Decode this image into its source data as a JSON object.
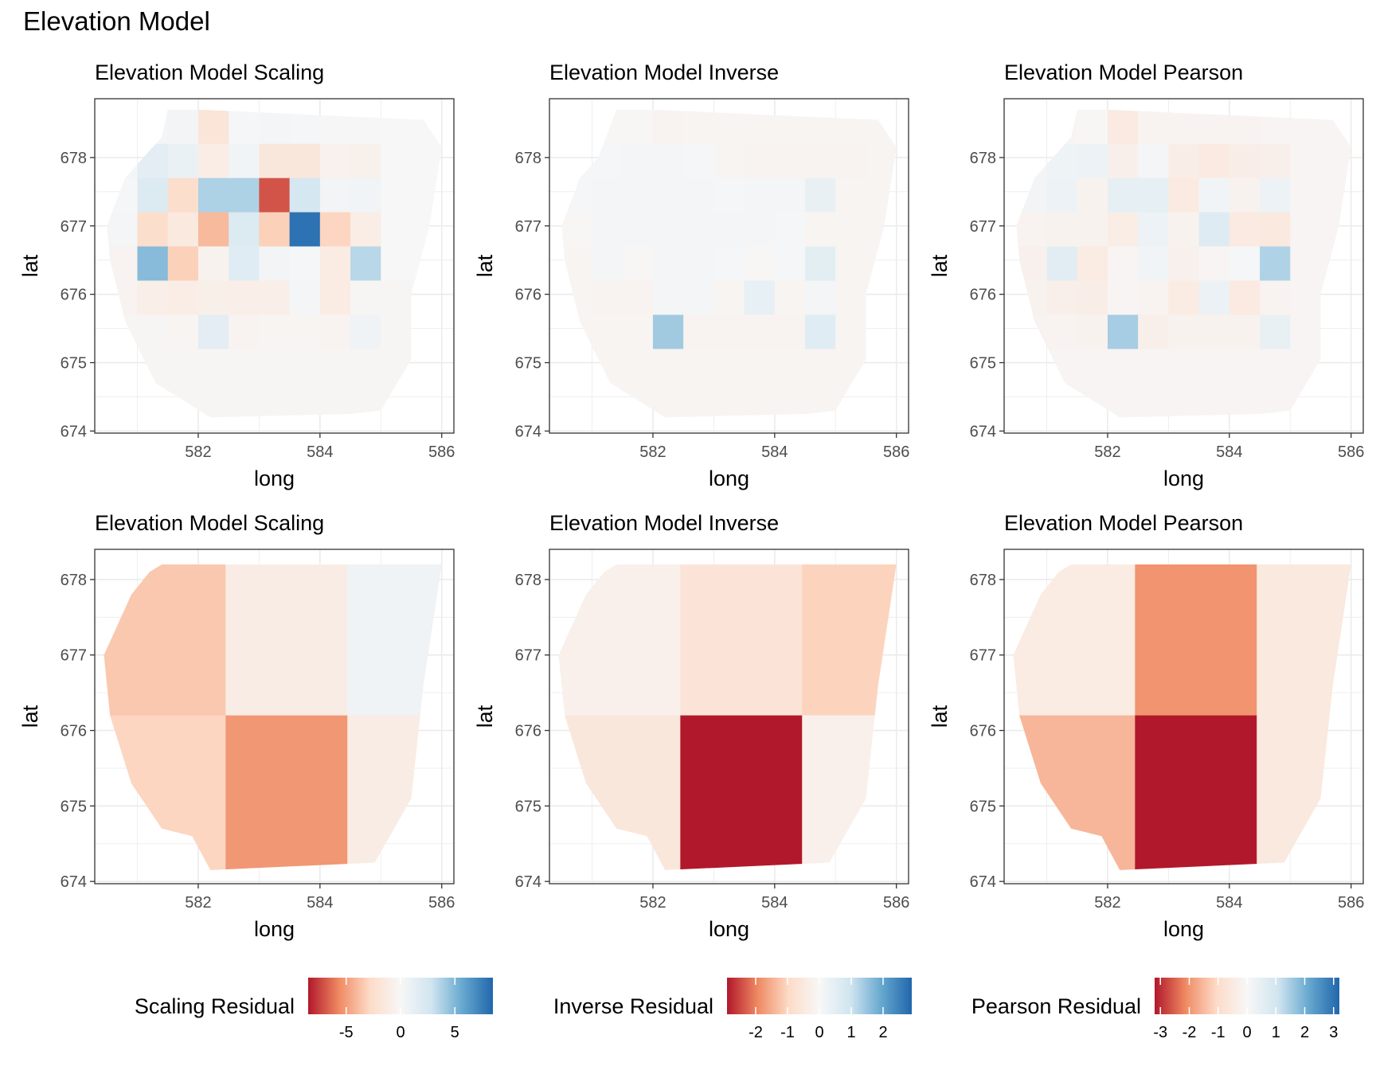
{
  "title": "Elevation Model",
  "chart_data": [
    {
      "type": "heatmap",
      "key": "scale_fine",
      "title": "Elevation Model Scaling",
      "xlabel": "long",
      "ylabel": "lat",
      "xlim": [
        580.3,
        586.2
      ],
      "ylim": [
        673.97,
        678.86
      ],
      "xticks": [
        582,
        584,
        586
      ],
      "yticks": [
        674,
        675,
        676,
        677,
        678
      ],
      "x_edges": [
        580.5,
        581.0,
        581.5,
        582.0,
        582.5,
        583.0,
        583.5,
        584.0,
        584.5,
        585.0,
        585.5,
        586.0
      ],
      "y_edges": [
        678.7,
        678.2,
        677.7,
        677.2,
        676.7,
        676.2,
        675.7,
        675.2,
        674.7,
        674.2
      ],
      "values": [
        [
          0,
          0.3,
          0.4,
          -1.8,
          0.2,
          0.3,
          0.2,
          0.1,
          0.1,
          0.0,
          0.0
        ],
        [
          0.3,
          1.5,
          1.0,
          -1.0,
          0.5,
          -1.6,
          -1.6,
          -0.6,
          -0.7,
          0.0,
          0.0
        ],
        [
          0.2,
          2.0,
          -2.5,
          3.8,
          3.8,
          -7.0,
          2.5,
          0.4,
          0.5,
          0.0,
          0.0
        ],
        [
          0.3,
          -2.5,
          -1.4,
          -4.0,
          2.0,
          -3.2,
          8.0,
          -3.0,
          -1.0,
          0.0,
          0.0
        ],
        [
          -0.4,
          4.8,
          -3.2,
          -0.5,
          1.8,
          0.4,
          0.2,
          -1.2,
          3.5,
          0.0,
          0.0
        ],
        [
          -0.4,
          -0.9,
          -1.0,
          -0.8,
          -0.9,
          -0.9,
          0.3,
          -1.2,
          -0.2,
          -0.2,
          0.0
        ],
        [
          -0.2,
          -0.2,
          -0.3,
          1.5,
          -0.4,
          -0.3,
          -0.3,
          -0.4,
          0.6,
          -0.2,
          -0.2
        ],
        [
          -0.2,
          -0.2,
          -0.2,
          -0.2,
          -0.2,
          -0.2,
          -0.2,
          -0.2,
          -0.2,
          -0.2,
          -0.2
        ],
        [
          -0.2,
          -0.2,
          -0.2,
          -0.2,
          -0.2,
          -0.2,
          -0.2,
          -0.2,
          -0.2,
          -0.2,
          -0.2
        ]
      ],
      "colorbar": "scaling"
    },
    {
      "type": "heatmap",
      "key": "inv_fine",
      "title": "Elevation Model Inverse",
      "xlabel": "long",
      "ylabel": "lat",
      "xlim": [
        580.3,
        586.2
      ],
      "ylim": [
        673.97,
        678.86
      ],
      "xticks": [
        582,
        584,
        586
      ],
      "yticks": [
        674,
        675,
        676,
        677,
        678
      ],
      "x_edges": [
        580.5,
        581.0,
        581.5,
        582.0,
        582.5,
        583.0,
        583.5,
        584.0,
        584.5,
        585.0,
        585.5,
        586.0
      ],
      "y_edges": [
        678.7,
        678.2,
        677.7,
        677.2,
        676.7,
        676.2,
        675.7,
        675.2,
        674.7,
        674.2
      ],
      "values": [
        [
          -0.05,
          -0.05,
          -0.05,
          -0.15,
          -0.1,
          -0.1,
          -0.1,
          -0.1,
          -0.1,
          -0.1,
          -0.1
        ],
        [
          0.05,
          0.05,
          0.1,
          0.1,
          0.05,
          -0.1,
          -0.15,
          -0.15,
          -0.15,
          -0.15,
          -0.1
        ],
        [
          0.05,
          0.1,
          0.1,
          0.1,
          0.1,
          0.05,
          0.1,
          0.1,
          0.35,
          -0.1,
          -0.1
        ],
        [
          -0.05,
          0.1,
          0.1,
          0.1,
          0.1,
          0.1,
          0.1,
          0.05,
          -0.1,
          -0.1,
          -0.1
        ],
        [
          -0.1,
          0.1,
          -0.05,
          0.1,
          0.1,
          0.05,
          -0.05,
          0.05,
          0.5,
          -0.1,
          -0.1
        ],
        [
          -0.1,
          -0.15,
          -0.15,
          0.1,
          0.1,
          -0.1,
          0.4,
          -0.1,
          0.1,
          -0.1,
          -0.1
        ],
        [
          -0.1,
          -0.1,
          -0.1,
          1.4,
          -0.15,
          -0.15,
          -0.15,
          -0.15,
          0.6,
          -0.1,
          -0.1
        ],
        [
          -0.1,
          -0.1,
          -0.1,
          -0.1,
          -0.1,
          -0.1,
          -0.1,
          -0.1,
          -0.1,
          -0.1,
          -0.1
        ],
        [
          -0.1,
          -0.1,
          -0.1,
          -0.1,
          -0.1,
          -0.1,
          -0.1,
          -0.1,
          -0.1,
          -0.1,
          -0.1
        ]
      ],
      "colorbar": "inverse"
    },
    {
      "type": "heatmap",
      "key": "pear_fine",
      "title": "Elevation Model Pearson",
      "xlabel": "long",
      "ylabel": "lat",
      "xlim": [
        580.3,
        586.2
      ],
      "ylim": [
        673.97,
        678.86
      ],
      "xticks": [
        582,
        584,
        586
      ],
      "yticks": [
        674,
        675,
        676,
        677,
        678
      ],
      "x_edges": [
        580.5,
        581.0,
        581.5,
        582.0,
        582.5,
        583.0,
        583.5,
        584.0,
        584.5,
        585.0,
        585.5,
        586.0
      ],
      "y_edges": [
        678.7,
        678.2,
        677.7,
        677.2,
        676.7,
        676.2,
        675.7,
        675.2,
        674.7,
        674.2
      ],
      "values": [
        [
          -0.05,
          -0.1,
          -0.05,
          -0.5,
          -0.15,
          -0.15,
          -0.15,
          -0.15,
          -0.1,
          -0.1,
          -0.1
        ],
        [
          0.15,
          0.25,
          0.3,
          -0.3,
          0.1,
          -0.35,
          -0.5,
          -0.35,
          -0.3,
          -0.1,
          -0.1
        ],
        [
          0.15,
          0.3,
          -0.2,
          0.5,
          0.5,
          -0.5,
          0.2,
          -0.2,
          0.3,
          -0.1,
          -0.1
        ],
        [
          -0.15,
          -0.2,
          -0.2,
          -0.4,
          0.3,
          -0.2,
          0.7,
          -0.5,
          -0.55,
          -0.1,
          -0.1
        ],
        [
          -0.25,
          0.6,
          -0.45,
          -0.1,
          0.2,
          -0.25,
          -0.1,
          0.05,
          1.4,
          -0.1,
          -0.1
        ],
        [
          -0.2,
          -0.3,
          -0.35,
          -0.1,
          -0.15,
          -0.45,
          0.35,
          -0.5,
          -0.15,
          -0.1,
          -0.1
        ],
        [
          -0.15,
          -0.15,
          -0.2,
          1.5,
          -0.3,
          -0.2,
          -0.2,
          -0.2,
          0.4,
          -0.1,
          -0.1
        ],
        [
          -0.1,
          -0.1,
          -0.1,
          -0.1,
          -0.1,
          -0.1,
          -0.1,
          -0.1,
          -0.1,
          -0.1,
          -0.1
        ],
        [
          -0.1,
          -0.1,
          -0.1,
          -0.1,
          -0.1,
          -0.1,
          -0.1,
          -0.1,
          -0.1,
          -0.1,
          -0.1
        ]
      ],
      "colorbar": "pearson"
    },
    {
      "type": "heatmap",
      "key": "scale_coarse",
      "title": "Elevation Model Scaling",
      "xlabel": "long",
      "ylabel": "lat",
      "xlim": [
        580.3,
        586.2
      ],
      "ylim": [
        673.97,
        678.4
      ],
      "xticks": [
        582,
        584,
        586
      ],
      "yticks": [
        674,
        675,
        676,
        677,
        678
      ],
      "x_edges": [
        580.45,
        582.45,
        584.45,
        586.0
      ],
      "y_edges": [
        678.2,
        676.2,
        674.15
      ],
      "values": [
        [
          -3.5,
          -1.1,
          0.6
        ],
        [
          -3.0,
          -5.2,
          -1.1
        ]
      ],
      "colorbar": "scaling"
    },
    {
      "type": "heatmap",
      "key": "inv_coarse",
      "title": "Elevation Model Inverse",
      "xlabel": "long",
      "ylabel": "lat",
      "xlim": [
        580.3,
        586.2
      ],
      "ylim": [
        673.97,
        678.4
      ],
      "xticks": [
        582,
        584,
        586
      ],
      "yticks": [
        674,
        675,
        676,
        677,
        678
      ],
      "x_edges": [
        580.45,
        582.45,
        584.45,
        586.0
      ],
      "y_edges": [
        678.2,
        676.2,
        674.15
      ],
      "values": [
        [
          -0.25,
          -0.65,
          -1.05
        ],
        [
          -0.55,
          -2.9,
          -0.25
        ]
      ],
      "colorbar": "inverse"
    },
    {
      "type": "heatmap",
      "key": "pear_coarse",
      "title": "Elevation Model Pearson",
      "xlabel": "long",
      "ylabel": "lat",
      "xlim": [
        580.3,
        586.2
      ],
      "ylim": [
        673.97,
        678.4
      ],
      "xticks": [
        582,
        584,
        586
      ],
      "yticks": [
        674,
        675,
        676,
        677,
        678
      ],
      "x_edges": [
        580.45,
        582.45,
        584.45,
        586.0
      ],
      "y_edges": [
        678.2,
        676.2,
        674.15
      ],
      "values": [
        [
          -0.45,
          -2.0,
          -0.55
        ],
        [
          -1.55,
          -3.2,
          -0.55
        ]
      ],
      "colorbar": "pearson"
    }
  ],
  "colorbars": {
    "scaling": {
      "label": "Scaling Residual",
      "range": [
        -8.5,
        8.5
      ],
      "ticks": [
        -5,
        0,
        5
      ]
    },
    "inverse": {
      "label": "Inverse Residual",
      "range": [
        -2.9,
        2.9
      ],
      "ticks": [
        -2,
        -1,
        0,
        1,
        2
      ]
    },
    "pearson": {
      "label": "Pearson Residual",
      "range": [
        -3.2,
        3.2
      ],
      "ticks": [
        -3,
        -2,
        -1,
        0,
        1,
        2,
        3
      ]
    }
  },
  "colors": {
    "diverging": [
      "#b2182b",
      "#ef8a62",
      "#fddbc7",
      "#f7f7f7",
      "#d1e5f0",
      "#67a9cf",
      "#2166ac"
    ],
    "grid": "#ebebeb",
    "panel_border": "#333333"
  }
}
